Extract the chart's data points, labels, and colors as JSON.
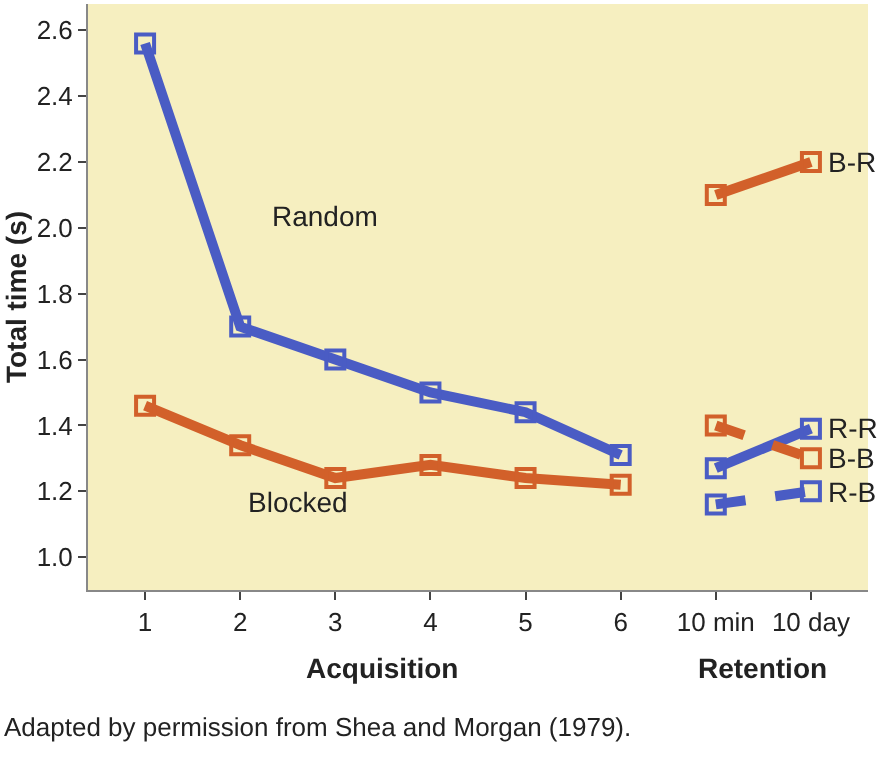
{
  "chart_data": {
    "type": "line",
    "ylabel": "Total time (s)",
    "xlabel": "Acquisition",
    "categories": [
      "1",
      "2",
      "3",
      "4",
      "5",
      "6",
      "10 min",
      "10 day"
    ],
    "series": [
      {
        "name": "Random",
        "color": "#4a5cc4",
        "values": [
          2.56,
          1.7,
          1.6,
          1.5,
          1.44,
          1.31,
          null,
          null
        ]
      },
      {
        "name": "Blocked",
        "color": "#d2602a",
        "values": [
          1.46,
          1.34,
          1.24,
          1.28,
          1.24,
          1.22,
          null,
          null
        ]
      },
      {
        "name": "B-R",
        "color": "#d2602a",
        "values": [
          null,
          null,
          null,
          null,
          null,
          null,
          2.1,
          2.2
        ]
      },
      {
        "name": "R-R",
        "color": "#4a5cc4",
        "values": [
          null,
          null,
          null,
          null,
          null,
          null,
          1.27,
          1.39
        ]
      },
      {
        "name": "B-B",
        "color": "#d2602a",
        "line_style": "dashed",
        "values": [
          null,
          null,
          null,
          null,
          null,
          null,
          1.4,
          1.3
        ]
      },
      {
        "name": "R-B",
        "color": "#4a5cc4",
        "line_style": "dashed",
        "values": [
          null,
          null,
          null,
          null,
          null,
          null,
          1.16,
          1.2
        ]
      }
    ],
    "ylim": [
      0.9,
      2.68
    ],
    "yticks": [
      {
        "value": 1,
        "label": "1.0"
      },
      1.2,
      1.4,
      1.6,
      1.8,
      {
        "value": 2,
        "label": "2.0"
      },
      2.2,
      2.4,
      2.6
    ],
    "marker": "square",
    "grid": false,
    "legend": false,
    "annotations": [
      "Retention",
      "Adapted by permission from Shea and Morgan (1979)."
    ]
  }
}
